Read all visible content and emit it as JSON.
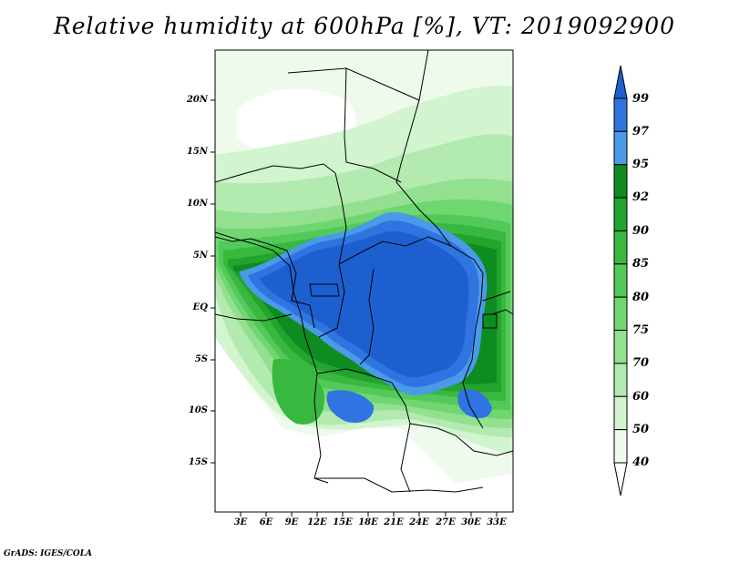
{
  "title": "Relative humidity at 600hPa [%], VT: 2019092900",
  "credit": "GrADS: IGES/COLA",
  "lat_labels": [
    "20N",
    "15N",
    "10N",
    "5N",
    "EQ",
    "5S",
    "10S",
    "15S"
  ],
  "lon_labels": [
    "3E",
    "6E",
    "9E",
    "12E",
    "15E",
    "18E",
    "21E",
    "24E",
    "27E",
    "30E",
    "33E"
  ],
  "colorbar": {
    "levels": [
      "99",
      "97",
      "95",
      "92",
      "90",
      "85",
      "80",
      "75",
      "70",
      "60",
      "50",
      "40"
    ],
    "colors": [
      "#1e5fd0",
      "#2f74e0",
      "#4a9ae8",
      "#0f8c1f",
      "#23a42f",
      "#39b840",
      "#52c95a",
      "#70d670",
      "#93e090",
      "#b2eaaf",
      "#d2f4cf",
      "#eefbec"
    ]
  }
}
